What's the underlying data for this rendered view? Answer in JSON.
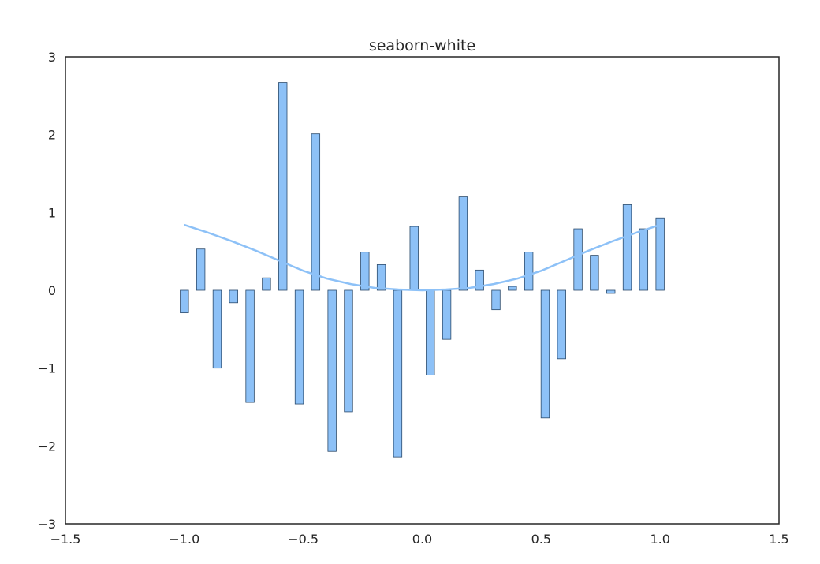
{
  "chart_data": {
    "type": "bar",
    "title": "seaborn-white",
    "xlabel": "",
    "ylabel": "",
    "xlim": [
      -1.5,
      1.5
    ],
    "ylim": [
      -3,
      3
    ],
    "xticks": [
      -1.5,
      -1.0,
      -0.5,
      0.0,
      0.5,
      1.0,
      1.5
    ],
    "xtick_labels": [
      "−1.5",
      "−1.0",
      "−0.5",
      "0.0",
      "0.5",
      "1.0",
      "1.5"
    ],
    "yticks": [
      -3,
      -2,
      -1,
      0,
      1,
      2,
      3
    ],
    "ytick_labels": [
      "−3",
      "−2",
      "−1",
      "0",
      "1",
      "2",
      "3"
    ],
    "grid": false,
    "bar_width": 0.035,
    "bar_color": "#8dc1f7",
    "bar_edge_color": "#2b4a6b",
    "line_color": "#8dc1f7",
    "axis_color": "#262626",
    "bars": {
      "x": [
        -1.0,
        -0.931,
        -0.862,
        -0.793,
        -0.724,
        -0.655,
        -0.586,
        -0.517,
        -0.448,
        -0.379,
        -0.31,
        -0.241,
        -0.172,
        -0.103,
        -0.034,
        0.034,
        0.103,
        0.172,
        0.241,
        0.31,
        0.379,
        0.448,
        0.517,
        0.586,
        0.655,
        0.724,
        0.793,
        0.862,
        0.931,
        1.0
      ],
      "values": [
        -0.29,
        0.53,
        -1.0,
        -0.16,
        -1.44,
        0.16,
        2.67,
        -1.46,
        2.01,
        -2.07,
        -1.56,
        0.49,
        0.33,
        -2.14,
        0.82,
        -1.09,
        -0.63,
        1.2,
        0.26,
        -0.25,
        0.05,
        0.49,
        -1.64,
        -0.88,
        0.79,
        0.45,
        -0.04,
        1.1,
        0.79,
        0.93
      ]
    },
    "curve": {
      "x": [
        -1.0,
        -0.9,
        -0.8,
        -0.7,
        -0.6,
        -0.5,
        -0.4,
        -0.3,
        -0.2,
        -0.1,
        0.0,
        0.1,
        0.2,
        0.3,
        0.4,
        0.5,
        0.6,
        0.7,
        0.8,
        0.9,
        1.0
      ],
      "y": [
        0.84,
        0.74,
        0.63,
        0.51,
        0.38,
        0.25,
        0.15,
        0.08,
        0.03,
        0.01,
        0.0,
        0.01,
        0.03,
        0.08,
        0.15,
        0.25,
        0.38,
        0.51,
        0.63,
        0.74,
        0.84
      ]
    }
  }
}
